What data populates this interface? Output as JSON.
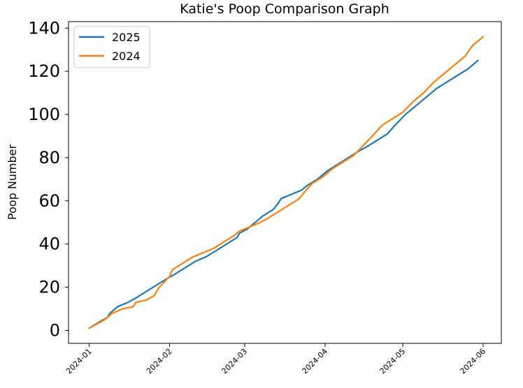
{
  "chart_data": {
    "type": "line",
    "title": "Katie's Poop Comparison Graph",
    "xlabel": "",
    "ylabel": "Poop Number",
    "x_tick_labels": [
      "2024-01",
      "2024-02",
      "2024-03",
      "2024-04",
      "2024-05",
      "2024-06"
    ],
    "x_tick_dates": [
      "2024-01-01",
      "2024-02-01",
      "2024-03-01",
      "2024-04-01",
      "2024-05-01",
      "2024-06-01"
    ],
    "xlim": [
      "2023-12-24",
      "2024-06-08"
    ],
    "y_ticks": [
      0,
      20,
      40,
      60,
      80,
      100,
      120,
      140
    ],
    "ylim": [
      -6,
      143
    ],
    "grid": false,
    "legend_position": "top-left",
    "series": [
      {
        "name": "2025",
        "color": "#1f77b4",
        "points": [
          [
            "2024-01-01",
            1
          ],
          [
            "2024-01-05",
            4
          ],
          [
            "2024-01-08",
            6
          ],
          [
            "2024-01-09",
            8
          ],
          [
            "2024-01-12",
            11
          ],
          [
            "2024-01-16",
            13
          ],
          [
            "2024-01-19",
            15
          ],
          [
            "2024-01-23",
            18
          ],
          [
            "2024-01-27",
            21
          ],
          [
            "2024-01-31",
            24
          ],
          [
            "2024-02-03",
            26
          ],
          [
            "2024-02-07",
            29
          ],
          [
            "2024-02-11",
            32
          ],
          [
            "2024-02-15",
            34
          ],
          [
            "2024-02-19",
            37
          ],
          [
            "2024-02-23",
            40
          ],
          [
            "2024-02-27",
            43
          ],
          [
            "2024-02-28",
            45
          ],
          [
            "2024-03-02",
            47
          ],
          [
            "2024-03-05",
            50
          ],
          [
            "2024-03-08",
            53
          ],
          [
            "2024-03-12",
            56
          ],
          [
            "2024-03-14",
            59
          ],
          [
            "2024-03-15",
            61
          ],
          [
            "2024-03-19",
            63
          ],
          [
            "2024-03-23",
            65
          ],
          [
            "2024-03-25",
            67
          ],
          [
            "2024-03-29",
            70
          ],
          [
            "2024-04-02",
            74
          ],
          [
            "2024-04-06",
            77
          ],
          [
            "2024-04-10",
            80
          ],
          [
            "2024-04-14",
            83
          ],
          [
            "2024-04-17",
            85
          ],
          [
            "2024-04-21",
            88
          ],
          [
            "2024-04-25",
            91
          ],
          [
            "2024-04-28",
            95
          ],
          [
            "2024-05-02",
            100
          ],
          [
            "2024-05-06",
            104
          ],
          [
            "2024-05-10",
            108
          ],
          [
            "2024-05-14",
            112
          ],
          [
            "2024-05-18",
            115
          ],
          [
            "2024-05-22",
            118
          ],
          [
            "2024-05-26",
            121
          ],
          [
            "2024-05-30",
            125
          ]
        ]
      },
      {
        "name": "2024",
        "color": "#ff7f0e",
        "points": [
          [
            "2024-01-01",
            1
          ],
          [
            "2024-01-04",
            3
          ],
          [
            "2024-01-07",
            5
          ],
          [
            "2024-01-10",
            8
          ],
          [
            "2024-01-14",
            10
          ],
          [
            "2024-01-18",
            11
          ],
          [
            "2024-01-19",
            13
          ],
          [
            "2024-01-23",
            14
          ],
          [
            "2024-01-26",
            16
          ],
          [
            "2024-01-28",
            20
          ],
          [
            "2024-02-01",
            25
          ],
          [
            "2024-02-02",
            28
          ],
          [
            "2024-02-06",
            31
          ],
          [
            "2024-02-10",
            34
          ],
          [
            "2024-02-14",
            36
          ],
          [
            "2024-02-18",
            38
          ],
          [
            "2024-02-22",
            41
          ],
          [
            "2024-02-26",
            44
          ],
          [
            "2024-02-28",
            46
          ],
          [
            "2024-03-03",
            48
          ],
          [
            "2024-03-07",
            50
          ],
          [
            "2024-03-10",
            52
          ],
          [
            "2024-03-14",
            55
          ],
          [
            "2024-03-18",
            58
          ],
          [
            "2024-03-22",
            61
          ],
          [
            "2024-03-24",
            64
          ],
          [
            "2024-03-27",
            68
          ],
          [
            "2024-03-31",
            71
          ],
          [
            "2024-04-04",
            75
          ],
          [
            "2024-04-08",
            78
          ],
          [
            "2024-04-12",
            81
          ],
          [
            "2024-04-16",
            86
          ],
          [
            "2024-04-20",
            91
          ],
          [
            "2024-04-23",
            95
          ],
          [
            "2024-04-27",
            98
          ],
          [
            "2024-05-01",
            101
          ],
          [
            "2024-05-05",
            106
          ],
          [
            "2024-05-09",
            110
          ],
          [
            "2024-05-13",
            115
          ],
          [
            "2024-05-17",
            119
          ],
          [
            "2024-05-21",
            123
          ],
          [
            "2024-05-25",
            127
          ],
          [
            "2024-05-28",
            132
          ],
          [
            "2024-06-01",
            136
          ]
        ]
      }
    ]
  }
}
